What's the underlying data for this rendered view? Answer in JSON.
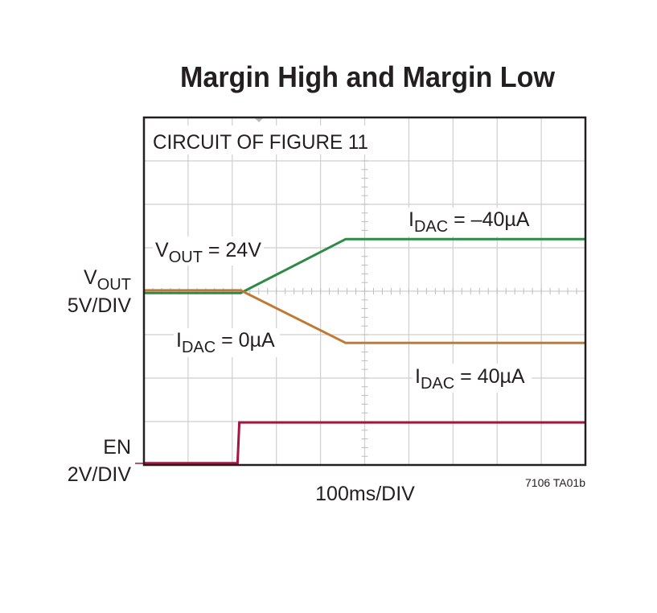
{
  "chart_data": {
    "type": "line",
    "title": "Margin High and Margin Low",
    "annotation_top": "CIRCUIT OF FIGURE 11",
    "xlabel": "100ms/DIV",
    "figure_id": "7106 TA01b",
    "x_divisions": 10,
    "y_divisions": 8,
    "xlim_ms": [
      0,
      1000
    ],
    "ylim_div": [
      0,
      8
    ],
    "grid": true,
    "channels": [
      {
        "label_main": "V",
        "label_sub": "OUT",
        "scale": "5V/DIV"
      },
      {
        "label_main": "EN",
        "label_sub": "",
        "scale": "2V/DIV"
      }
    ],
    "series": [
      {
        "color": "#2e8b45",
        "x": [
          0,
          219,
          457,
          1000
        ],
        "y": [
          3.96,
          3.96,
          5.2,
          5.2
        ]
      },
      {
        "color": "#c07a35",
        "x": [
          0,
          219,
          457,
          1000
        ],
        "y": [
          4.02,
          4.02,
          2.81,
          2.81
        ]
      },
      {
        "color": "#a3173f",
        "x": [
          0,
          212,
          216,
          1000
        ],
        "y": [
          0.04,
          0.04,
          0.98,
          0.98
        ]
      }
    ],
    "labels": [
      {
        "main": "V",
        "sub": "OUT",
        "rest": " = 24V"
      },
      {
        "main": "I",
        "sub": "DAC",
        "rest": " = –40µA"
      },
      {
        "main": "I",
        "sub": "DAC",
        "rest": " = 0µA"
      },
      {
        "main": "I",
        "sub": "DAC",
        "rest": " = 40µA"
      }
    ]
  }
}
